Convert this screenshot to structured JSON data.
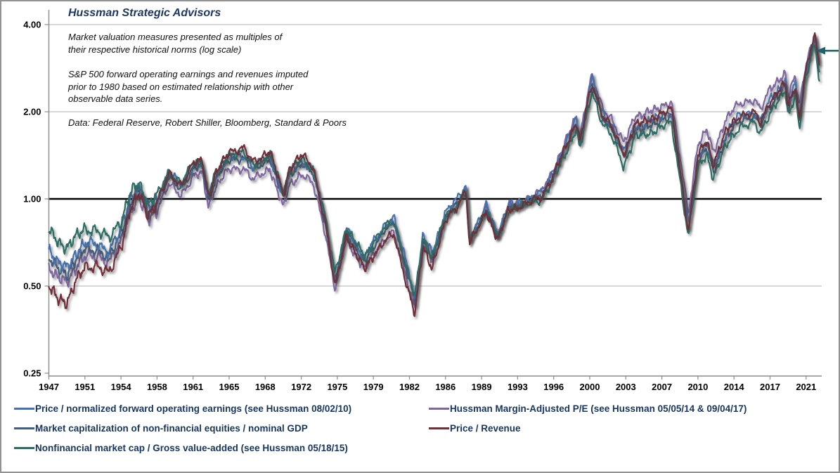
{
  "figure": {
    "title": "Hussman Strategic Advisors",
    "title_color": "#1F3864",
    "border_color": "#929292",
    "background": "#FFFFFF"
  },
  "annotations": {
    "para1": [
      "Market valuation measures presented as multiples of",
      "their respective historical norms (log scale)"
    ],
    "para2": [
      "S&P 500 forward operating earnings and revenues imputed",
      "prior to 1980 based on estimated relationship with other",
      "observable data series."
    ],
    "source": "Data: Federal Reserve, Robert Shiller, Bloomberg, Standard & Poors"
  },
  "chart_data": {
    "type": "line",
    "title": "Hussman Strategic Advisors",
    "y_scale": "log2",
    "xlim": [
      1947,
      2022.6
    ],
    "ylim": [
      0.25,
      4.3
    ],
    "grid": "horizontal-only",
    "reference_line": 1.0,
    "axis_color": "#8C8C8C",
    "gridline_color": "#BFBFBF",
    "reference_line_color": "#000000",
    "tick_label_color": "#000000",
    "legend_position": "bottom-two-columns",
    "arrow_marker": {
      "points_to_value": 3.25,
      "color": "#1F6368"
    },
    "y_ticks": [
      {
        "label": "4.00",
        "value": 4
      },
      {
        "label": "2.00",
        "value": 2
      },
      {
        "label": "1.00",
        "value": 1
      },
      {
        "label": "0.50",
        "value": 0.5
      },
      {
        "label": "0.25",
        "value": 0.25
      }
    ],
    "x_ticks": [
      1947,
      1951,
      1954,
      1958,
      1961,
      1965,
      1968,
      1972,
      1975,
      1979,
      1982,
      1986,
      1989,
      1993,
      1996,
      2000,
      2003,
      2007,
      2010,
      2014,
      2017,
      2021
    ],
    "x": [
      1947,
      1948,
      1949,
      1950,
      1951,
      1952,
      1953,
      1954,
      1955,
      1956,
      1957,
      1958,
      1959,
      1960,
      1961,
      1962,
      1962.7,
      1963.5,
      1965,
      1966.2,
      1967,
      1968.5,
      1970,
      1970.7,
      1972,
      1973,
      1974,
      1974.8,
      1976,
      1977,
      1978,
      1980,
      1980.7,
      1982,
      1982.6,
      1983.5,
      1984.5,
      1986,
      1987,
      1987.7,
      1988,
      1989.5,
      1990.8,
      1992,
      1993.5,
      1995,
      1996,
      1997,
      1998.5,
      1998.9,
      2000.2,
      2001,
      2001.8,
      2002.8,
      2004,
      2005,
      2007,
      2007.8,
      2009.2,
      2010,
      2011,
      2011.7,
      2013,
      2014.5,
      2015.7,
      2016.2,
      2017,
      2018,
      2018.7,
      2019,
      2019.8,
      2020.25,
      2020.8,
      2021.5,
      2022,
      2022.5
    ],
    "series": [
      {
        "name": "Price / normalized forward operating earnings (see Hussman 08/02/10)",
        "color": "#4472AC",
        "values": [
          0.67,
          0.6,
          0.58,
          0.65,
          0.7,
          0.7,
          0.66,
          0.78,
          1.0,
          1.1,
          0.93,
          1.0,
          1.22,
          1.12,
          1.3,
          1.33,
          1.02,
          1.2,
          1.4,
          1.42,
          1.28,
          1.42,
          1.02,
          1.25,
          1.35,
          1.25,
          0.85,
          0.53,
          0.79,
          0.7,
          0.62,
          0.82,
          0.86,
          0.55,
          0.45,
          0.75,
          0.65,
          0.9,
          1.0,
          1.12,
          0.73,
          0.95,
          0.76,
          0.95,
          0.98,
          1.05,
          1.25,
          1.45,
          1.9,
          1.6,
          2.6,
          2.0,
          1.8,
          1.45,
          1.8,
          1.8,
          1.95,
          2.0,
          0.82,
          1.4,
          1.55,
          1.3,
          1.65,
          1.95,
          2.0,
          1.85,
          2.2,
          2.4,
          2.55,
          2.1,
          2.5,
          1.95,
          2.65,
          3.25,
          3.7,
          2.85
        ]
      },
      {
        "name": "Hussman Margin-Adjusted P/E (see Hussman 05/05/14 & 09/04/17)",
        "color": "#7E66A1",
        "values": [
          0.58,
          0.53,
          0.52,
          0.58,
          0.63,
          0.64,
          0.6,
          0.71,
          0.91,
          1.0,
          0.85,
          0.92,
          1.12,
          1.03,
          1.2,
          1.22,
          0.94,
          1.1,
          1.27,
          1.28,
          1.16,
          1.28,
          0.93,
          1.12,
          1.22,
          1.12,
          0.77,
          0.49,
          0.73,
          0.64,
          0.57,
          0.73,
          0.76,
          0.49,
          0.42,
          0.7,
          0.61,
          0.86,
          0.97,
          1.1,
          0.72,
          0.94,
          0.75,
          0.95,
          0.98,
          1.06,
          1.27,
          1.48,
          1.95,
          1.65,
          2.65,
          2.1,
          1.9,
          1.55,
          1.95,
          1.95,
          2.1,
          2.15,
          0.9,
          1.55,
          1.72,
          1.45,
          1.85,
          2.15,
          2.2,
          2.02,
          2.4,
          2.6,
          2.7,
          2.25,
          2.65,
          2.1,
          2.75,
          3.3,
          3.55,
          2.9
        ]
      },
      {
        "name": "Market capitalization of non-financial equities / nominal GDP",
        "color": "#425F7D",
        "values": [
          0.63,
          0.57,
          0.55,
          0.62,
          0.67,
          0.67,
          0.63,
          0.75,
          0.97,
          1.07,
          0.9,
          0.97,
          1.18,
          1.09,
          1.27,
          1.29,
          0.99,
          1.17,
          1.37,
          1.39,
          1.25,
          1.39,
          1.0,
          1.22,
          1.32,
          1.22,
          0.83,
          0.52,
          0.77,
          0.68,
          0.6,
          0.79,
          0.83,
          0.53,
          0.44,
          0.72,
          0.63,
          0.87,
          0.97,
          1.09,
          0.71,
          0.92,
          0.74,
          0.93,
          0.96,
          1.02,
          1.21,
          1.41,
          1.84,
          1.55,
          2.5,
          1.95,
          1.75,
          1.4,
          1.74,
          1.74,
          1.88,
          1.93,
          0.79,
          1.35,
          1.49,
          1.25,
          1.58,
          1.88,
          1.92,
          1.78,
          2.1,
          2.3,
          2.45,
          2.02,
          2.4,
          1.85,
          2.55,
          3.15,
          3.6,
          2.7
        ]
      },
      {
        "name": "Price / Revenue",
        "color": "#6F2F37",
        "values": [
          0.5,
          0.45,
          0.44,
          0.52,
          0.58,
          0.59,
          0.55,
          0.68,
          0.92,
          1.04,
          0.88,
          0.97,
          1.22,
          1.12,
          1.32,
          1.36,
          1.02,
          1.22,
          1.46,
          1.5,
          1.33,
          1.48,
          1.03,
          1.28,
          1.42,
          1.28,
          0.83,
          0.5,
          0.75,
          0.65,
          0.57,
          0.72,
          0.75,
          0.47,
          0.4,
          0.68,
          0.58,
          0.84,
          0.95,
          1.08,
          0.7,
          0.91,
          0.72,
          0.92,
          0.95,
          1.02,
          1.22,
          1.43,
          1.86,
          1.57,
          2.5,
          1.98,
          1.78,
          1.42,
          1.82,
          1.83,
          1.98,
          2.03,
          0.78,
          1.42,
          1.58,
          1.32,
          1.68,
          1.95,
          1.98,
          1.82,
          2.18,
          2.38,
          2.5,
          2.08,
          2.48,
          1.88,
          2.6,
          3.28,
          3.65,
          2.95
        ]
      },
      {
        "name": "Nonfinancial market cap / Gross value-added (see Hussman 05/18/15)",
        "color": "#2C6D62",
        "values": [
          0.78,
          0.71,
          0.68,
          0.74,
          0.79,
          0.78,
          0.73,
          0.84,
          1.05,
          1.13,
          0.96,
          1.03,
          1.24,
          1.14,
          1.32,
          1.34,
          1.05,
          1.22,
          1.43,
          1.44,
          1.3,
          1.44,
          1.05,
          1.27,
          1.36,
          1.26,
          0.87,
          0.55,
          0.8,
          0.71,
          0.63,
          0.8,
          0.83,
          0.53,
          0.46,
          0.73,
          0.63,
          0.87,
          0.96,
          1.08,
          0.71,
          0.92,
          0.73,
          0.92,
          0.95,
          1.0,
          1.18,
          1.36,
          1.75,
          1.48,
          2.35,
          1.85,
          1.65,
          1.3,
          1.65,
          1.65,
          1.78,
          1.82,
          0.75,
          1.28,
          1.42,
          1.18,
          1.5,
          1.78,
          1.82,
          1.68,
          2.0,
          2.2,
          2.35,
          1.92,
          2.3,
          1.75,
          2.45,
          3.05,
          3.45,
          2.5
        ]
      }
    ]
  }
}
